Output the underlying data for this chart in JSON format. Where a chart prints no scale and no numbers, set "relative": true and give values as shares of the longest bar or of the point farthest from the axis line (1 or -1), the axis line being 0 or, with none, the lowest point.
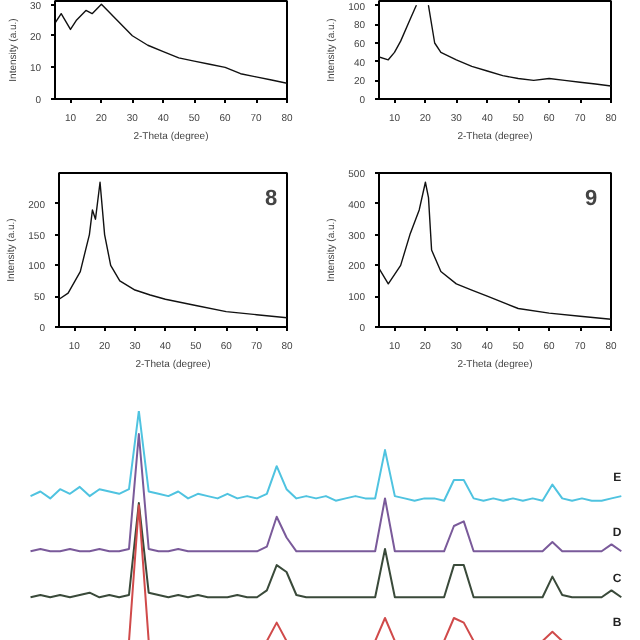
{
  "chart_data": [
    {
      "type": "line",
      "x": [
        5,
        7,
        10,
        12,
        15,
        17,
        20,
        22,
        25,
        30,
        35,
        40,
        45,
        50,
        55,
        60,
        65,
        70,
        75,
        80
      ],
      "values": [
        24,
        27,
        22,
        25,
        28,
        27,
        30,
        28,
        25,
        20,
        17,
        15,
        13,
        12,
        11,
        10,
        8,
        7,
        6,
        5
      ],
      "color": "#111111",
      "xlim": [
        5,
        80
      ],
      "ylim": [
        0,
        31
      ],
      "xticks": [
        10,
        20,
        30,
        40,
        50,
        60,
        70,
        80
      ],
      "yticks": [
        0,
        10,
        20,
        30
      ],
      "xlabel": "2-Theta (degree)",
      "ylabel": "Intensity (a.u.)"
    },
    {
      "type": "line",
      "x": [
        5,
        8,
        10,
        12,
        15,
        17,
        19,
        21,
        23,
        25,
        30,
        35,
        40,
        45,
        50,
        55,
        60,
        65,
        70,
        75,
        80
      ],
      "values": [
        45,
        42,
        50,
        62,
        85,
        100,
        null,
        100,
        60,
        50,
        42,
        35,
        30,
        25,
        22,
        20,
        22,
        20,
        18,
        16,
        14
      ],
      "color": "#111111",
      "xlim": [
        5,
        80
      ],
      "ylim": [
        0,
        105
      ],
      "xticks": [
        10,
        20,
        30,
        40,
        50,
        60,
        70,
        80
      ],
      "yticks": [
        0,
        20,
        40,
        60,
        80,
        100
      ],
      "xlabel": "2-Theta (degree)",
      "ylabel": "Intensity (a.u.)"
    },
    {
      "type": "line",
      "x": [
        5,
        8,
        12,
        15,
        16,
        17,
        18.5,
        20,
        22,
        25,
        30,
        35,
        40,
        50,
        60,
        70,
        80
      ],
      "values": [
        45,
        55,
        90,
        150,
        190,
        175,
        235,
        150,
        100,
        75,
        60,
        52,
        45,
        35,
        25,
        20,
        15
      ],
      "color": "#111111",
      "xlim": [
        5,
        80
      ],
      "ylim": [
        0,
        250
      ],
      "xticks": [
        10,
        20,
        30,
        40,
        50,
        60,
        70,
        80
      ],
      "yticks": [
        0,
        50,
        100,
        150,
        200
      ],
      "xlabel": "2-Theta (degree)",
      "ylabel": "Intensity (a.u.)",
      "annotations": [
        "8"
      ]
    },
    {
      "type": "line",
      "x": [
        5,
        8,
        12,
        15,
        18,
        20,
        21,
        22,
        25,
        30,
        35,
        40,
        50,
        60,
        70,
        80
      ],
      "values": [
        190,
        140,
        200,
        300,
        380,
        470,
        420,
        250,
        180,
        140,
        120,
        100,
        60,
        45,
        35,
        25
      ],
      "color": "#111111",
      "xlim": [
        5,
        80
      ],
      "ylim": [
        0,
        500
      ],
      "xticks": [
        10,
        20,
        30,
        40,
        50,
        60,
        70,
        80
      ],
      "yticks": [
        0,
        100,
        200,
        300,
        400,
        500
      ],
      "xlabel": "2-Theta (degree)",
      "ylabel": "Intensity (a.u.)",
      "annotations": [
        "9"
      ]
    },
    {
      "type": "line",
      "relative": true,
      "categories": [
        null,
        null,
        null,
        null,
        null,
        null,
        null,
        null,
        null,
        null,
        null,
        null,
        null,
        null,
        null,
        null,
        null,
        null,
        null,
        null,
        null,
        null,
        null,
        null,
        null,
        null,
        null,
        null,
        null,
        null,
        null,
        null,
        null,
        null,
        null,
        null,
        null,
        null,
        null,
        null,
        null,
        null,
        null,
        null,
        null,
        null,
        null,
        null,
        null,
        null,
        null,
        null,
        null,
        null,
        null,
        null,
        null,
        null,
        null,
        null,
        null
      ],
      "series": [
        {
          "name": "E",
          "color": "#4fc3e0",
          "values": [
            0.63,
            0.65,
            0.62,
            0.66,
            0.64,
            0.67,
            0.63,
            0.66,
            0.65,
            0.64,
            0.66,
            1.0,
            0.65,
            0.64,
            0.63,
            0.65,
            0.62,
            0.64,
            0.63,
            0.62,
            0.64,
            0.62,
            0.63,
            0.62,
            0.64,
            0.76,
            0.66,
            0.62,
            0.63,
            0.62,
            0.63,
            0.61,
            0.62,
            0.63,
            0.62,
            0.62,
            0.83,
            0.63,
            0.62,
            0.61,
            0.62,
            0.62,
            0.61,
            0.7,
            0.7,
            0.62,
            0.61,
            0.62,
            0.61,
            0.62,
            0.61,
            0.62,
            0.61,
            0.68,
            0.62,
            0.61,
            0.62,
            0.61,
            0.61,
            0.62,
            0.63
          ]
        },
        {
          "name": "D",
          "color": "#7a5a9a",
          "values": [
            0.39,
            0.4,
            0.39,
            0.39,
            0.4,
            0.39,
            0.39,
            0.4,
            0.39,
            0.39,
            0.4,
            0.9,
            0.4,
            0.39,
            0.39,
            0.4,
            0.39,
            0.39,
            0.39,
            0.39,
            0.39,
            0.39,
            0.39,
            0.39,
            0.41,
            0.54,
            0.45,
            0.39,
            0.39,
            0.39,
            0.39,
            0.39,
            0.39,
            0.39,
            0.39,
            0.39,
            0.62,
            0.39,
            0.39,
            0.39,
            0.39,
            0.39,
            0.39,
            0.5,
            0.52,
            0.39,
            0.39,
            0.39,
            0.39,
            0.39,
            0.39,
            0.39,
            0.39,
            0.43,
            0.39,
            0.39,
            0.39,
            0.39,
            0.39,
            0.42,
            0.39
          ]
        },
        {
          "name": "C",
          "color": "#3a4a3a",
          "values": [
            0.19,
            0.2,
            0.19,
            0.2,
            0.19,
            0.2,
            0.21,
            0.19,
            0.2,
            0.19,
            0.2,
            0.6,
            0.21,
            0.2,
            0.19,
            0.2,
            0.19,
            0.2,
            0.19,
            0.19,
            0.19,
            0.2,
            0.19,
            0.19,
            0.22,
            0.33,
            0.3,
            0.2,
            0.19,
            0.19,
            0.19,
            0.19,
            0.19,
            0.19,
            0.19,
            0.19,
            0.4,
            0.19,
            0.19,
            0.19,
            0.19,
            0.19,
            0.19,
            0.33,
            0.33,
            0.19,
            0.19,
            0.19,
            0.19,
            0.19,
            0.19,
            0.19,
            0.19,
            0.28,
            0.2,
            0.19,
            0.19,
            0.19,
            0.19,
            0.22,
            0.19
          ]
        },
        {
          "name": "B",
          "color": "#d04a4a",
          "values": [
            null,
            null,
            null,
            null,
            null,
            null,
            null,
            null,
            null,
            null,
            0,
            0.59,
            0,
            null,
            null,
            null,
            null,
            null,
            null,
            null,
            null,
            null,
            null,
            null,
            0,
            0.08,
            0,
            null,
            null,
            null,
            null,
            null,
            null,
            null,
            null,
            0,
            0.1,
            0,
            null,
            null,
            null,
            null,
            0,
            0.1,
            0.08,
            0,
            null,
            null,
            null,
            null,
            null,
            null,
            0,
            0.04,
            0,
            null,
            null,
            null,
            null,
            null,
            null
          ]
        }
      ]
    }
  ]
}
